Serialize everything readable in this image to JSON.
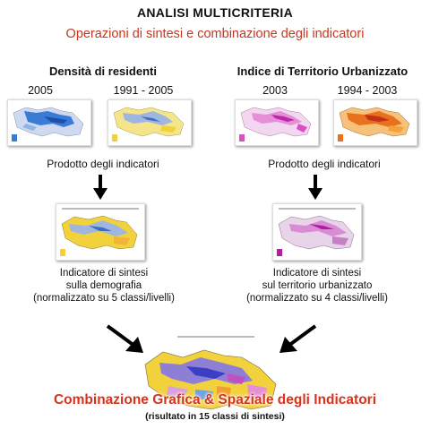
{
  "title": "ANALISI MULTICRITERIA",
  "subtitle": "Operazioni di sintesi e combinazione degli indicatori",
  "left": {
    "heading": "Densità di residenti",
    "years": [
      "2005",
      "1991 - 2005"
    ],
    "product_label": "Prodotto degli indicatori",
    "indicator_lines": [
      "Indicatore di sintesi",
      "sulla demografia",
      "(normalizzato su 5 classi/livelli)"
    ]
  },
  "right": {
    "heading": "Indice di Territorio Urbanizzato",
    "years": [
      "2003",
      "1994 - 2003"
    ],
    "product_label": "Prodotto degli indicatori",
    "indicator_lines": [
      "Indicatore di sintesi",
      "sul territorio urbanizzato",
      "(normalizzato su 4 classi/livelli)"
    ]
  },
  "result": {
    "title": "Combinazione Grafica & Spaziale degli Indicatori",
    "subtitle": "(risultato in 15 classi di sintesi)"
  },
  "colors": {
    "accent_red": "#c8361f",
    "blue_map": "#3a7bd5",
    "yellow_map": "#f2d23c",
    "magenta_map": "#d94fc4",
    "orange_map": "#e8701e"
  }
}
